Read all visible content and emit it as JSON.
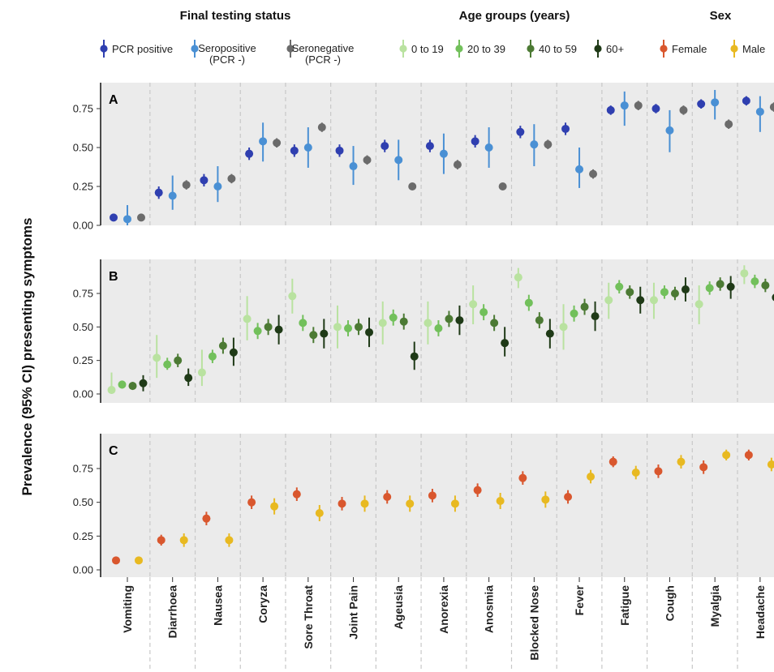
{
  "chart_data": {
    "type": "scatter",
    "ylabel": "Prevalence (95% CI) presenting symptoms",
    "ylim": [
      0,
      1
    ],
    "y_ticks": [
      "0.00",
      "0.25",
      "0.50",
      "0.75"
    ],
    "categories": [
      "Vomiting",
      "Diarrhoea",
      "Nausea",
      "Coryza",
      "Sore Throat",
      "Joint Pain",
      "Ageusia",
      "Anorexia",
      "Anosmia",
      "Blocked Nose",
      "Fever",
      "Fatigue",
      "Cough",
      "Myalgia",
      "Headache"
    ],
    "legend_groups": [
      {
        "title": "Final testing status",
        "entries": [
          {
            "label": "PCR positive",
            "label2": "",
            "color": "#2f3fb0"
          },
          {
            "label": "Seropositive",
            "label2": "(PCR -)",
            "color": "#4a90d4"
          },
          {
            "label": "Seronegative",
            "label2": "(PCR -)",
            "color": "#6b6b6b"
          }
        ]
      },
      {
        "title": "Age groups (years)",
        "entries": [
          {
            "label": "0 to 19",
            "label2": "",
            "color": "#b9e2a0"
          },
          {
            "label": "20 to 39",
            "label2": "",
            "color": "#72c05b"
          },
          {
            "label": "40 to 59",
            "label2": "",
            "color": "#4c7a34"
          },
          {
            "label": "60+",
            "label2": "",
            "color": "#1f3a17"
          }
        ]
      },
      {
        "title": "Sex",
        "entries": [
          {
            "label": "Female",
            "label2": "",
            "color": "#d9572e"
          },
          {
            "label": "Male",
            "label2": "",
            "color": "#e8b921"
          }
        ]
      }
    ],
    "panels": [
      {
        "label": "A",
        "series": [
          {
            "name": "PCR positive",
            "color": "#2f3fb0",
            "values": [
              0.05,
              0.21,
              0.29,
              0.46,
              0.48,
              0.48,
              0.51,
              0.51,
              0.54,
              0.6,
              0.62,
              0.74,
              0.75,
              0.78,
              0.8
            ],
            "lo": [
              0.03,
              0.17,
              0.25,
              0.42,
              0.44,
              0.44,
              0.47,
              0.47,
              0.5,
              0.56,
              0.58,
              0.71,
              0.72,
              0.75,
              0.77
            ],
            "hi": [
              0.07,
              0.25,
              0.33,
              0.5,
              0.52,
              0.52,
              0.55,
              0.55,
              0.58,
              0.64,
              0.66,
              0.77,
              0.78,
              0.81,
              0.83
            ]
          },
          {
            "name": "Seropositive (PCR -)",
            "color": "#4a90d4",
            "values": [
              0.04,
              0.19,
              0.25,
              0.54,
              0.5,
              0.38,
              0.42,
              0.46,
              0.5,
              0.52,
              0.36,
              0.77,
              0.61,
              0.79,
              0.73
            ],
            "lo": [
              0.0,
              0.1,
              0.15,
              0.41,
              0.37,
              0.26,
              0.29,
              0.33,
              0.37,
              0.38,
              0.24,
              0.64,
              0.47,
              0.68,
              0.6
            ],
            "hi": [
              0.13,
              0.32,
              0.38,
              0.66,
              0.63,
              0.51,
              0.55,
              0.59,
              0.63,
              0.65,
              0.5,
              0.86,
              0.74,
              0.87,
              0.83
            ]
          },
          {
            "name": "Seronegative (PCR -)",
            "color": "#6b6b6b",
            "values": [
              0.05,
              0.26,
              0.3,
              0.53,
              0.63,
              0.42,
              0.25,
              0.39,
              0.25,
              0.52,
              0.33,
              0.77,
              0.74,
              0.65,
              0.76
            ],
            "lo": [
              0.04,
              0.23,
              0.27,
              0.5,
              0.6,
              0.39,
              0.23,
              0.36,
              0.23,
              0.49,
              0.3,
              0.74,
              0.71,
              0.62,
              0.73
            ],
            "hi": [
              0.06,
              0.29,
              0.33,
              0.56,
              0.66,
              0.45,
              0.27,
              0.42,
              0.27,
              0.55,
              0.36,
              0.8,
              0.77,
              0.68,
              0.79
            ]
          }
        ]
      },
      {
        "label": "B",
        "series": [
          {
            "name": "0 to 19",
            "color": "#b9e2a0",
            "values": [
              0.03,
              0.27,
              0.16,
              0.56,
              0.73,
              0.5,
              0.53,
              0.53,
              0.67,
              0.87,
              0.5,
              0.7,
              0.7,
              0.67,
              0.9
            ],
            "lo": [
              0.0,
              0.12,
              0.06,
              0.4,
              0.6,
              0.34,
              0.37,
              0.37,
              0.52,
              0.79,
              0.33,
              0.56,
              0.56,
              0.52,
              0.82
            ],
            "hi": [
              0.16,
              0.44,
              0.33,
              0.73,
              0.86,
              0.66,
              0.69,
              0.69,
              0.81,
              0.94,
              0.67,
              0.83,
              0.83,
              0.81,
              0.96
            ]
          },
          {
            "name": "20 to 39",
            "color": "#72c05b",
            "values": [
              0.07,
              0.22,
              0.28,
              0.47,
              0.53,
              0.49,
              0.57,
              0.49,
              0.61,
              0.68,
              0.6,
              0.8,
              0.76,
              0.79,
              0.84
            ],
            "lo": [
              0.04,
              0.18,
              0.23,
              0.41,
              0.47,
              0.43,
              0.51,
              0.43,
              0.55,
              0.62,
              0.54,
              0.75,
              0.71,
              0.74,
              0.79
            ],
            "hi": [
              0.1,
              0.27,
              0.33,
              0.53,
              0.59,
              0.55,
              0.63,
              0.55,
              0.67,
              0.74,
              0.66,
              0.85,
              0.81,
              0.84,
              0.89
            ]
          },
          {
            "name": "40 to 59",
            "color": "#4c7a34",
            "values": [
              0.06,
              0.25,
              0.36,
              0.5,
              0.44,
              0.5,
              0.54,
              0.56,
              0.53,
              0.55,
              0.65,
              0.76,
              0.75,
              0.82,
              0.81
            ],
            "lo": [
              0.03,
              0.2,
              0.3,
              0.44,
              0.38,
              0.44,
              0.48,
              0.5,
              0.47,
              0.49,
              0.59,
              0.71,
              0.7,
              0.77,
              0.76
            ],
            "hi": [
              0.09,
              0.3,
              0.42,
              0.56,
              0.5,
              0.56,
              0.6,
              0.62,
              0.59,
              0.61,
              0.71,
              0.81,
              0.8,
              0.87,
              0.86
            ]
          },
          {
            "name": "60+",
            "color": "#1f3a17",
            "values": [
              0.08,
              0.12,
              0.31,
              0.48,
              0.45,
              0.46,
              0.28,
              0.55,
              0.38,
              0.45,
              0.58,
              0.7,
              0.78,
              0.8,
              0.72
            ],
            "lo": [
              0.02,
              0.06,
              0.21,
              0.37,
              0.34,
              0.35,
              0.18,
              0.44,
              0.28,
              0.34,
              0.47,
              0.6,
              0.69,
              0.71,
              0.62
            ],
            "hi": [
              0.14,
              0.19,
              0.42,
              0.59,
              0.56,
              0.57,
              0.39,
              0.66,
              0.5,
              0.56,
              0.69,
              0.8,
              0.87,
              0.88,
              0.82
            ]
          }
        ]
      },
      {
        "label": "C",
        "series": [
          {
            "name": "Female",
            "color": "#d9572e",
            "values": [
              0.07,
              0.22,
              0.38,
              0.5,
              0.56,
              0.49,
              0.54,
              0.55,
              0.59,
              0.68,
              0.54,
              0.8,
              0.73,
              0.76,
              0.85
            ],
            "lo": [
              0.05,
              0.18,
              0.33,
              0.45,
              0.51,
              0.44,
              0.49,
              0.5,
              0.54,
              0.63,
              0.49,
              0.76,
              0.68,
              0.71,
              0.81
            ],
            "hi": [
              0.09,
              0.26,
              0.43,
              0.55,
              0.61,
              0.54,
              0.59,
              0.6,
              0.64,
              0.73,
              0.59,
              0.84,
              0.78,
              0.81,
              0.89
            ]
          },
          {
            "name": "Male",
            "color": "#e8b921",
            "values": [
              0.07,
              0.22,
              0.22,
              0.47,
              0.42,
              0.49,
              0.49,
              0.49,
              0.51,
              0.52,
              0.69,
              0.72,
              0.8,
              0.85,
              0.78
            ],
            "lo": [
              0.05,
              0.17,
              0.17,
              0.41,
              0.36,
              0.43,
              0.43,
              0.43,
              0.45,
              0.46,
              0.64,
              0.67,
              0.75,
              0.81,
              0.73
            ],
            "hi": [
              0.09,
              0.27,
              0.27,
              0.53,
              0.48,
              0.55,
              0.55,
              0.55,
              0.57,
              0.58,
              0.74,
              0.77,
              0.85,
              0.89,
              0.83
            ]
          }
        ]
      }
    ]
  }
}
